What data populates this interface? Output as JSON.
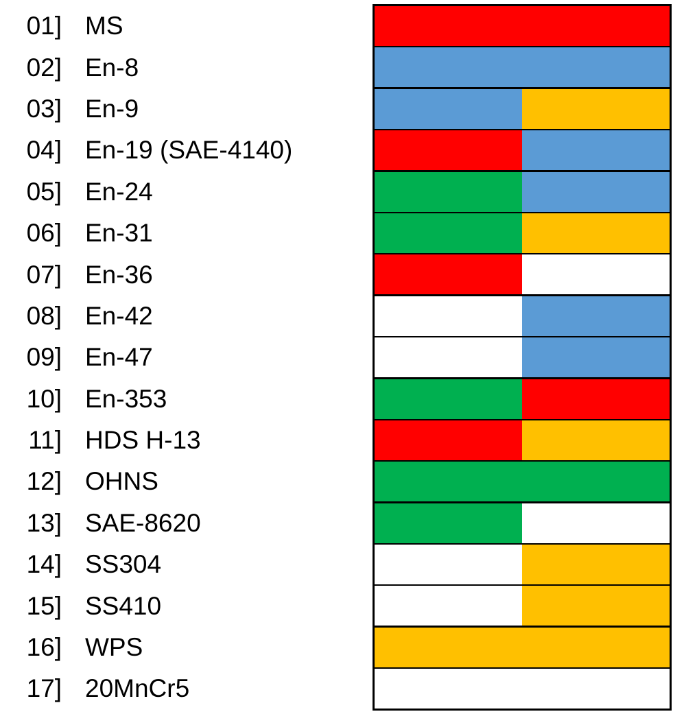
{
  "colors": {
    "red": "#ff0000",
    "blue": "#5b9bd5",
    "yellow": "#ffc000",
    "green": "#00b050",
    "white": "#ffffff"
  },
  "items": [
    {
      "num": "01]",
      "name": "MS",
      "cells": [
        "red"
      ]
    },
    {
      "num": "02]",
      "name": "En-8",
      "cells": [
        "blue"
      ]
    },
    {
      "num": "03]",
      "name": "En-9",
      "cells": [
        "blue",
        "yellow"
      ]
    },
    {
      "num": "04]",
      "name": "En-19 (SAE-4140)",
      "cells": [
        "red",
        "blue"
      ]
    },
    {
      "num": "05]",
      "name": "En-24",
      "cells": [
        "green",
        "blue"
      ]
    },
    {
      "num": "06]",
      "name": "En-31",
      "cells": [
        "green",
        "yellow"
      ]
    },
    {
      "num": "07]",
      "name": "En-36",
      "cells": [
        "red",
        "white"
      ]
    },
    {
      "num": "08]",
      "name": "En-42",
      "cells": [
        "white",
        "blue"
      ]
    },
    {
      "num": "09]",
      "name": "En-47",
      "cells": [
        "white",
        "blue"
      ]
    },
    {
      "num": "10]",
      "name": "En-353",
      "cells": [
        "green",
        "red"
      ]
    },
    {
      "num": "11]",
      "name": "HDS H-13",
      "cells": [
        "red",
        "yellow"
      ]
    },
    {
      "num": "12]",
      "name": "OHNS",
      "cells": [
        "green"
      ]
    },
    {
      "num": "13]",
      "name": "SAE-8620",
      "cells": [
        "green",
        "white"
      ]
    },
    {
      "num": "14]",
      "name": "SS304",
      "cells": [
        "white",
        "yellow"
      ]
    },
    {
      "num": "15]",
      "name": "SS410",
      "cells": [
        "white",
        "yellow"
      ]
    },
    {
      "num": "16]",
      "name": "WPS",
      "cells": [
        "yellow"
      ]
    },
    {
      "num": "17]",
      "name": "20MnCr5",
      "cells": [
        "white"
      ]
    }
  ]
}
